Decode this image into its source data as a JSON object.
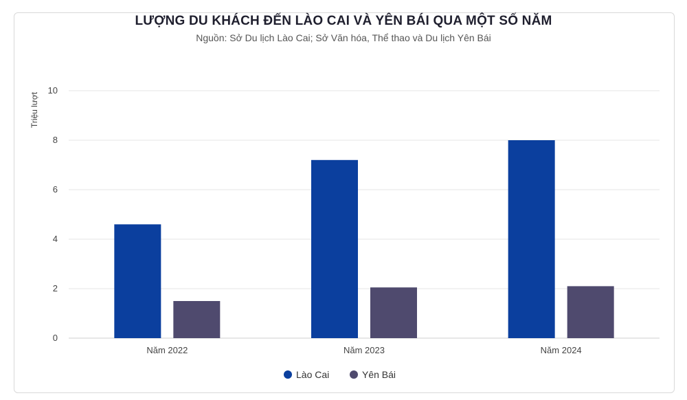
{
  "chart_data": {
    "type": "bar",
    "title": "LƯỢNG DU KHÁCH ĐẾN LÀO CAI VÀ YÊN BÁI QUA MỘT SỐ NĂM",
    "subtitle": "Nguồn: Sở Du lịch Lào Cai; Sở Văn hóa, Thể thao và Du lịch Yên Bái",
    "categories": [
      "Năm 2022",
      "Năm 2023",
      "Năm 2024"
    ],
    "series": [
      {
        "name": "Lào Cai",
        "values": [
          4.6,
          7.2,
          8.0
        ],
        "color": "#0b3f9e"
      },
      {
        "name": "Yên Bái",
        "values": [
          1.5,
          2.05,
          2.1
        ],
        "color": "#4f4a6e"
      }
    ],
    "xlabel": "",
    "ylabel": "Triệu lượt",
    "ylim": [
      0,
      10
    ],
    "yticks": [
      0,
      2,
      4,
      6,
      8,
      10
    ],
    "grid": true,
    "legend_position": "bottom"
  }
}
